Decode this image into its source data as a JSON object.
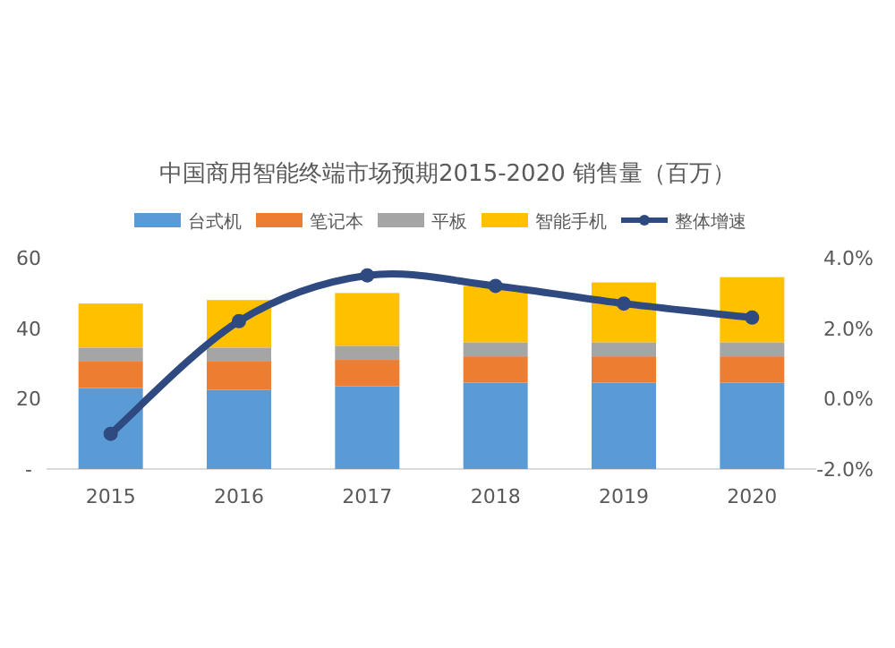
{
  "chart_data": {
    "type": "bar",
    "stacked": true,
    "title": "中国商用智能终端市场预期2015-2020 销售量（百万）",
    "categories": [
      "2015",
      "2016",
      "2017",
      "2018",
      "2019",
      "2020"
    ],
    "series": [
      {
        "name": "台式机",
        "color": "#5b9bd5",
        "values": [
          23,
          22.5,
          23.5,
          24.5,
          24.5,
          24.5
        ]
      },
      {
        "name": "笔记本",
        "color": "#ed7d31",
        "values": [
          7.5,
          8,
          7.5,
          7.5,
          7.5,
          7.5
        ]
      },
      {
        "name": "平板",
        "color": "#a5a5a5",
        "values": [
          4,
          4,
          4,
          4,
          4,
          4
        ]
      },
      {
        "name": "智能手机",
        "color": "#ffc000",
        "values": [
          12.5,
          13.5,
          15,
          16,
          17,
          18.5
        ]
      },
      {
        "name": "整体增速",
        "color": "#2e4a80",
        "type": "line",
        "axis": "y2",
        "values": [
          -1.0,
          2.2,
          3.5,
          3.2,
          2.7,
          2.3
        ]
      }
    ],
    "ylim": [
      0,
      60
    ],
    "yticks": [
      {
        "value": 0,
        "label": "-"
      },
      20,
      40,
      60
    ],
    "y2lim": [
      -2,
      4
    ],
    "y2ticks": [
      {
        "value": -2,
        "label": "-2.0%"
      },
      {
        "value": 0,
        "label": "0.0%"
      },
      {
        "value": 2,
        "label": "2.0%"
      },
      {
        "value": 4,
        "label": "4.0%"
      }
    ],
    "marker": "circle",
    "legend": "top",
    "grid": false
  }
}
